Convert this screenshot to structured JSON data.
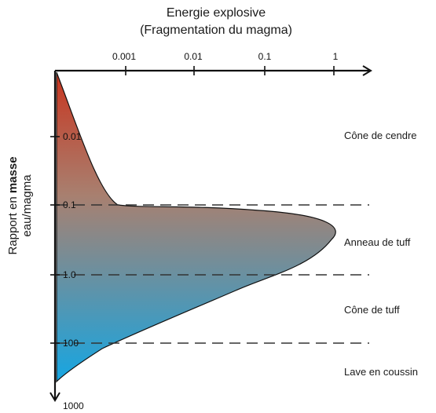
{
  "title": {
    "line1": "Energie explosive",
    "line2": "(Fragmentation du magma)"
  },
  "y_axis_label": {
    "prefix": "Rapport en ",
    "emphasis": "masse",
    "line2": "eau/magma"
  },
  "x_ticks": [
    "0.001",
    "0.01",
    "0.1",
    "1"
  ],
  "y_ticks": [
    "0.01",
    "0.1",
    "1.0",
    "100",
    "1000"
  ],
  "zones": [
    "Cône de cendre",
    "Anneau de tuff",
    "Cône de tuff",
    "Lave en coussin"
  ],
  "colors": {
    "gradient_top": "#c8351f",
    "gradient_mid": "#a88070",
    "gradient_bottom": "#16a6e2",
    "axis": "#111111",
    "dashes": "#333333"
  }
}
